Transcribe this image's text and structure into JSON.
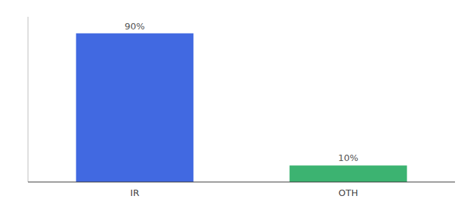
{
  "chart_data": {
    "type": "bar",
    "categories": [
      "IR",
      "OTH"
    ],
    "values": [
      90,
      10
    ],
    "value_labels": [
      "90%",
      "10%"
    ],
    "data_labels": true,
    "colors": [
      "#4169E1",
      "#3CB371"
    ],
    "ylim": [
      0,
      100
    ],
    "tick_labels": "x"
  }
}
